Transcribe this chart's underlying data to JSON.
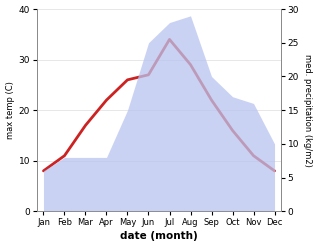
{
  "months": [
    "Jan",
    "Feb",
    "Mar",
    "Apr",
    "May",
    "Jun",
    "Jul",
    "Aug",
    "Sep",
    "Oct",
    "Nov",
    "Dec"
  ],
  "max_temp": [
    8,
    11,
    17,
    22,
    26,
    27,
    34,
    29,
    22,
    16,
    11,
    8
  ],
  "precipitation": [
    6,
    8,
    8,
    8,
    15,
    25,
    28,
    29,
    20,
    17,
    16,
    10
  ],
  "temp_color": "#cc2222",
  "precip_fill_color": "#b8c4ee",
  "precip_fill_alpha": 0.75,
  "temp_ylim": [
    0,
    40
  ],
  "precip_ylim": [
    0,
    30
  ],
  "temp_yticks": [
    0,
    10,
    20,
    30,
    40
  ],
  "precip_yticks": [
    0,
    5,
    10,
    15,
    20,
    25,
    30
  ],
  "xlabel": "date (month)",
  "ylabel_left": "max temp (C)",
  "ylabel_right": "med. precipitation (kg/m2)",
  "bg_color": "#ffffff",
  "spine_color": "#888888",
  "temp_linewidth": 2.0
}
